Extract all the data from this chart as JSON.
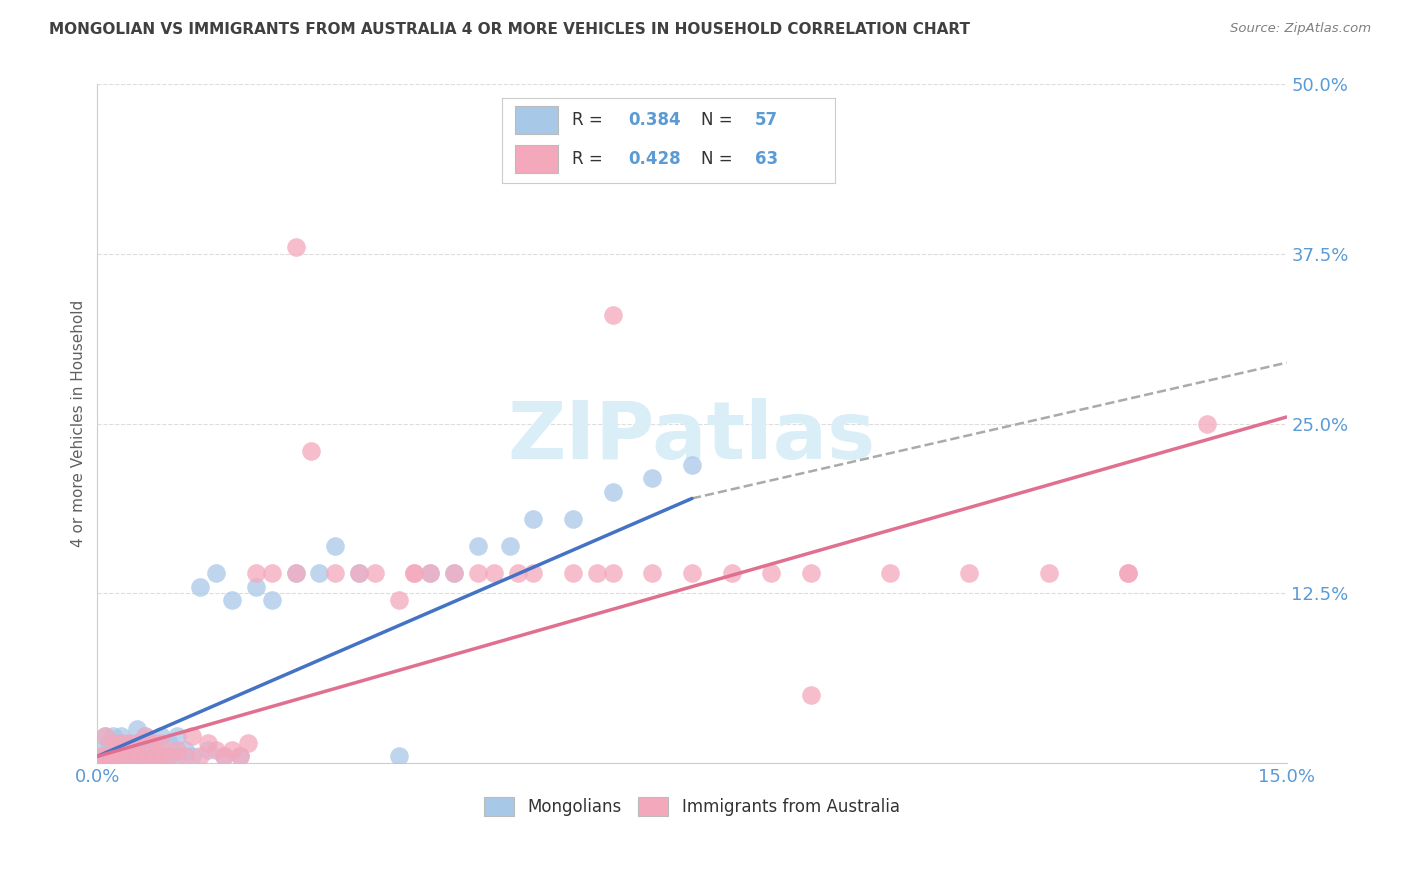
{
  "title": "MONGOLIAN VS IMMIGRANTS FROM AUSTRALIA 4 OR MORE VEHICLES IN HOUSEHOLD CORRELATION CHART",
  "source": "Source: ZipAtlas.com",
  "ylabel": "4 or more Vehicles in Household",
  "xlim": [
    0.0,
    0.15
  ],
  "ylim": [
    0.0,
    0.5
  ],
  "xtick_positions": [
    0.0,
    0.05,
    0.1,
    0.15
  ],
  "xtick_labels": [
    "0.0%",
    "",
    "",
    "15.0%"
  ],
  "ytick_positions": [
    0.0,
    0.125,
    0.25,
    0.375,
    0.5
  ],
  "ytick_labels": [
    "",
    "12.5%",
    "25.0%",
    "37.5%",
    "50.0%"
  ],
  "mongolian_R": 0.384,
  "mongolian_N": 57,
  "australia_R": 0.428,
  "australia_N": 63,
  "mongolian_color": "#a8c8e8",
  "australia_color": "#f4a8bc",
  "mongolian_line_color": "#4472c4",
  "australia_line_color": "#e07090",
  "dashed_line_color": "#aaaaaa",
  "watermark_color": "#daeef8",
  "background_color": "#ffffff",
  "grid_color": "#dddddd",
  "tick_color": "#5b9bd5",
  "title_color": "#404040",
  "source_color": "#808080",
  "ylabel_color": "#606060",
  "mongolian_x": [
    0.0005,
    0.001,
    0.001,
    0.0015,
    0.0015,
    0.002,
    0.002,
    0.002,
    0.0025,
    0.0025,
    0.003,
    0.003,
    0.003,
    0.003,
    0.004,
    0.004,
    0.004,
    0.005,
    0.005,
    0.005,
    0.005,
    0.006,
    0.006,
    0.006,
    0.007,
    0.007,
    0.007,
    0.008,
    0.008,
    0.009,
    0.009,
    0.01,
    0.01,
    0.011,
    0.012,
    0.013,
    0.014,
    0.015,
    0.016,
    0.017,
    0.018,
    0.02,
    0.022,
    0.025,
    0.028,
    0.03,
    0.033,
    0.038,
    0.042,
    0.045,
    0.048,
    0.052,
    0.055,
    0.06,
    0.065,
    0.07,
    0.075
  ],
  "mongolian_y": [
    0.01,
    0.005,
    0.02,
    0.005,
    0.015,
    0.005,
    0.01,
    0.02,
    0.005,
    0.015,
    0.005,
    0.01,
    0.015,
    0.02,
    0.005,
    0.01,
    0.015,
    0.005,
    0.01,
    0.015,
    0.025,
    0.005,
    0.01,
    0.02,
    0.005,
    0.01,
    0.015,
    0.005,
    0.02,
    0.005,
    0.015,
    0.005,
    0.02,
    0.01,
    0.005,
    0.13,
    0.01,
    0.14,
    0.005,
    0.12,
    0.005,
    0.13,
    0.12,
    0.14,
    0.14,
    0.16,
    0.14,
    0.005,
    0.14,
    0.14,
    0.16,
    0.16,
    0.18,
    0.18,
    0.2,
    0.21,
    0.22
  ],
  "australia_x": [
    0.0005,
    0.001,
    0.001,
    0.0015,
    0.002,
    0.002,
    0.0025,
    0.003,
    0.003,
    0.004,
    0.004,
    0.005,
    0.005,
    0.006,
    0.006,
    0.007,
    0.007,
    0.008,
    0.008,
    0.009,
    0.01,
    0.011,
    0.012,
    0.013,
    0.014,
    0.015,
    0.016,
    0.017,
    0.018,
    0.019,
    0.02,
    0.022,
    0.025,
    0.027,
    0.03,
    0.033,
    0.035,
    0.038,
    0.04,
    0.042,
    0.045,
    0.048,
    0.05,
    0.053,
    0.055,
    0.06,
    0.063,
    0.065,
    0.07,
    0.075,
    0.08,
    0.085,
    0.09,
    0.1,
    0.11,
    0.12,
    0.13,
    0.14,
    0.13,
    0.065,
    0.04,
    0.025,
    0.09
  ],
  "australia_y": [
    0.005,
    0.005,
    0.02,
    0.005,
    0.005,
    0.015,
    0.01,
    0.005,
    0.015,
    0.005,
    0.015,
    0.005,
    0.015,
    0.005,
    0.02,
    0.005,
    0.015,
    0.005,
    0.015,
    0.005,
    0.01,
    0.005,
    0.02,
    0.005,
    0.015,
    0.01,
    0.005,
    0.01,
    0.005,
    0.015,
    0.14,
    0.14,
    0.14,
    0.23,
    0.14,
    0.14,
    0.14,
    0.12,
    0.14,
    0.14,
    0.14,
    0.14,
    0.14,
    0.14,
    0.14,
    0.14,
    0.14,
    0.14,
    0.14,
    0.14,
    0.14,
    0.14,
    0.14,
    0.14,
    0.14,
    0.14,
    0.14,
    0.25,
    0.14,
    0.33,
    0.14,
    0.38,
    0.05
  ],
  "mongo_trend_x0": 0.0,
  "mongo_trend_y0": 0.005,
  "mongo_trend_x1": 0.075,
  "mongo_trend_y1": 0.195,
  "mongo_trend_dash_x1": 0.15,
  "mongo_trend_dash_y1": 0.295,
  "aus_trend_x0": 0.0,
  "aus_trend_y0": 0.005,
  "aus_trend_x1": 0.15,
  "aus_trend_y1": 0.255
}
